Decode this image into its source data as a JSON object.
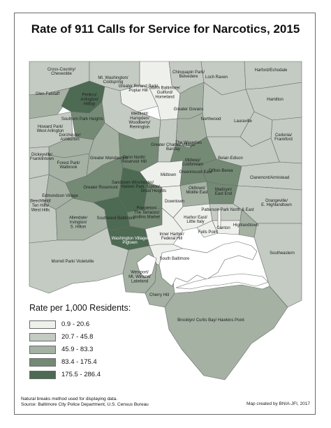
{
  "title": "Rate of 911 Calls for Service for Narcotics, 2015",
  "colors": {
    "class1": "#eef0ec",
    "class2": "#c3cbc2",
    "class3": "#a4b1a3",
    "class4": "#748a75",
    "class5": "#4d6a53",
    "water": "#ffffff",
    "border": "#6a6a6a"
  },
  "legend": {
    "title": "Rate per 1,000 Residents:",
    "classes": [
      {
        "label": "0.9 - 20.6"
      },
      {
        "label": "20.7 - 45.8"
      },
      {
        "label": "45.9 - 83.3"
      },
      {
        "label": "83.4 - 175.4"
      },
      {
        "label": "175.5 - 286.4"
      }
    ]
  },
  "neighborhoods": [
    {
      "name": "Cross-Country/ Cheswolde",
      "class": 2
    },
    {
      "name": "Mt. Washington/ Coldspring",
      "class": 2
    },
    {
      "name": "Chinquapin Park/ Belvedere",
      "class": 2
    },
    {
      "name": "Loch Raven",
      "class": 2
    },
    {
      "name": "Harford/Echodale",
      "class": 2
    },
    {
      "name": "Glen-Falstaff",
      "class": 3
    },
    {
      "name": "Pimlico/ Arlington/ Hilltop",
      "class": 5
    },
    {
      "name": "Greater Roland Park/ Poplar Hill",
      "class": 1
    },
    {
      "name": "North Baltimore/ Guilford/ Homeland",
      "class": 1
    },
    {
      "name": "Greater Govans",
      "class": 3
    },
    {
      "name": "Hamilton",
      "class": 2
    },
    {
      "name": "Howard Park/ West Arlington",
      "class": 2
    },
    {
      "name": "Southern Park Heights",
      "class": 4
    },
    {
      "name": "Medfield/ Hampden/ Woodberry/ Remington",
      "class": 2
    },
    {
      "name": "Northwood",
      "class": 2
    },
    {
      "name": "Lauraville",
      "class": 2
    },
    {
      "name": "Dorchester/ Ashburton",
      "class": 3
    },
    {
      "name": "Cedonia/ Frankford",
      "class": 2
    },
    {
      "name": "The Waverlies",
      "class": 3
    },
    {
      "name": "Greater Charles Village/ Barclay",
      "class": 2
    },
    {
      "name": "Belair-Edison",
      "class": 2
    },
    {
      "name": "Forest Park/ Walbrook",
      "class": 3
    },
    {
      "name": "Greater Mondawmin",
      "class": 3
    },
    {
      "name": "Penn North/ Reservoir Hill",
      "class": 4
    },
    {
      "name": "Midway/ Coldstream",
      "class": 4
    },
    {
      "name": "Dickeyville/ Franklintown",
      "class": 2
    },
    {
      "name": "Midtown",
      "class": 1
    },
    {
      "name": "Greenmount East",
      "class": 4
    },
    {
      "name": "Clifton-Berea",
      "class": 4
    },
    {
      "name": "Claremont/Armistead",
      "class": 2
    },
    {
      "name": "Greater Rosemont",
      "class": 4
    },
    {
      "name": "Sandtown-Winchester/ Harlem Park",
      "class": 5
    },
    {
      "name": "Upton/ Druid Heights",
      "class": 4
    },
    {
      "name": "Edmondson Village",
      "class": 3
    },
    {
      "name": "Oldtown/ Middle East",
      "class": 3
    },
    {
      "name": "Madison/ East End",
      "class": 4
    },
    {
      "name": "Downtown",
      "class": 1
    },
    {
      "name": "Patterson Park North & East",
      "class": 2
    },
    {
      "name": "Orangeville/ E. Highlandtown",
      "class": 2
    },
    {
      "name": "Beechfield/ Ten Hills/ West Hills",
      "class": 2
    },
    {
      "name": "Allendale/ Irvington/ S. Hilton",
      "class": 3
    },
    {
      "name": "Southwest Baltimore",
      "class": 5
    },
    {
      "name": "Poppleton/ The Terraces/ Hollins Market",
      "class": 4
    },
    {
      "name": "Harbor East/ Little Italy",
      "class": 1
    },
    {
      "name": "Fells Point",
      "class": 1
    },
    {
      "name": "Canton",
      "class": 1
    },
    {
      "name": "Highlandtown",
      "class": 3
    },
    {
      "name": "Southeastern",
      "class": 2
    },
    {
      "name": "Washington Village/ Pigtown",
      "class": 5
    },
    {
      "name": "Inner Harbor/ Federal Hill",
      "class": 1
    },
    {
      "name": "Morrell Park/ Violetville",
      "class": 2
    },
    {
      "name": "South Baltimore",
      "class": 1
    },
    {
      "name": "Westport/ Mt. Winans/ Lakeland",
      "class": 3
    },
    {
      "name": "Cherry Hill",
      "class": 3
    },
    {
      "name": "Brooklyn/ Curtis Bay/ Hawkins Point",
      "class": 3
    }
  ],
  "notes": {
    "method": "Natural breaks method used for displaying data.",
    "source": "Source: Baltimore City Police Department, U.S. Census Bureau",
    "credit": "Map created by BNIA-JFI, 2017"
  }
}
